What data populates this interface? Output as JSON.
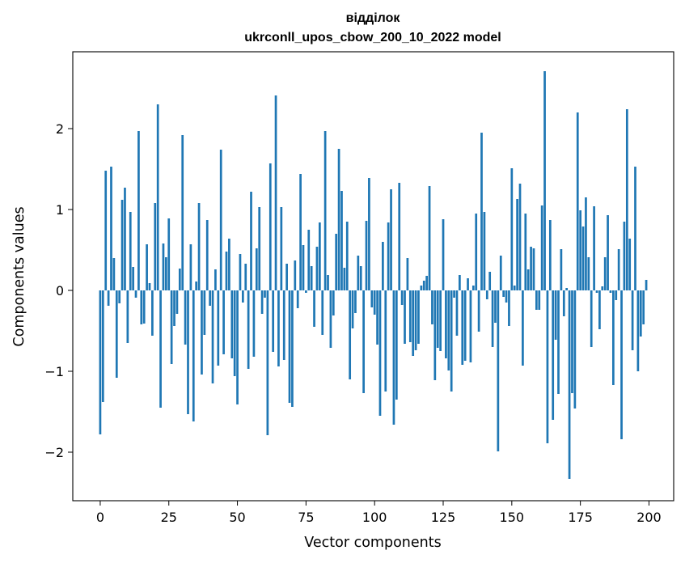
{
  "chart_data": {
    "type": "bar",
    "title_line1": "відділок",
    "title_line2": "ukrconll_upos_cbow_200_10_2022 model",
    "xlabel": "Vector components",
    "ylabel": "Components values",
    "xlim": [
      -10,
      209
    ],
    "ylim": [
      -2.6,
      2.95
    ],
    "xticks": [
      0,
      25,
      50,
      75,
      100,
      125,
      150,
      175,
      200
    ],
    "yticks": [
      -2,
      -1,
      0,
      1,
      2
    ],
    "grid": false,
    "legend": "none",
    "color": "#1f77b4",
    "values": [
      -1.78,
      -1.38,
      1.48,
      -0.19,
      1.53,
      0.4,
      -1.08,
      -0.16,
      1.12,
      1.27,
      -0.65,
      0.97,
      0.29,
      -0.09,
      1.97,
      -0.42,
      -0.41,
      0.57,
      0.09,
      -0.56,
      1.08,
      2.3,
      -1.45,
      0.58,
      0.41,
      0.89,
      -0.91,
      -0.44,
      -0.29,
      0.27,
      1.92,
      -0.67,
      -1.53,
      0.57,
      -1.62,
      0.11,
      1.08,
      -1.04,
      -0.55,
      0.87,
      -0.19,
      -1.15,
      0.26,
      -0.93,
      1.74,
      -0.79,
      0.48,
      0.64,
      -0.84,
      -1.06,
      -1.41,
      0.45,
      -0.15,
      0.33,
      -0.97,
      1.22,
      -0.82,
      0.52,
      1.03,
      -0.29,
      -0.09,
      -1.79,
      1.57,
      -0.76,
      2.41,
      -0.94,
      1.03,
      -0.86,
      0.33,
      -1.39,
      -1.44,
      0.37,
      -0.22,
      1.44,
      0.56,
      -0.03,
      0.75,
      0.3,
      -0.45,
      0.54,
      0.84,
      -0.55,
      1.97,
      0.19,
      -0.71,
      -0.31,
      0.7,
      1.75,
      1.23,
      0.28,
      0.85,
      -1.1,
      -0.47,
      -0.28,
      0.43,
      0.3,
      -1.27,
      0.86,
      1.39,
      -0.21,
      -0.3,
      -0.67,
      -1.55,
      0.6,
      -1.25,
      0.84,
      1.25,
      -1.66,
      -1.35,
      1.33,
      -0.18,
      -0.66,
      0.4,
      -0.64,
      -0.81,
      -0.74,
      -0.66,
      0.06,
      0.12,
      0.18,
      1.29,
      -0.42,
      -1.11,
      -0.71,
      -0.75,
      0.88,
      -0.84,
      -0.99,
      -1.25,
      -0.09,
      -0.56,
      0.19,
      -0.92,
      -0.87,
      0.15,
      -0.89,
      0.06,
      0.95,
      -0.51,
      1.95,
      0.97,
      -0.11,
      0.23,
      -0.7,
      -0.4,
      -1.99,
      0.43,
      -0.08,
      -0.15,
      -0.44,
      1.51,
      0.06,
      1.13,
      1.32,
      -0.93,
      0.95,
      0.26,
      0.54,
      0.52,
      -0.24,
      -0.24,
      1.05,
      2.71,
      -1.89,
      0.87,
      -1.6,
      -0.61,
      -1.28,
      0.51,
      -0.32,
      0.03,
      -2.33,
      -1.27,
      -1.46,
      2.2,
      0.99,
      0.79,
      1.15,
      0.41,
      -0.7,
      1.04,
      -0.03,
      -0.48,
      0.05,
      0.41,
      0.93,
      -0.03,
      -1.17,
      -0.12,
      0.51,
      -1.84,
      0.85,
      2.24,
      0.64,
      -0.74,
      1.53,
      -1.0,
      -0.57,
      -0.42,
      0.13
    ]
  }
}
